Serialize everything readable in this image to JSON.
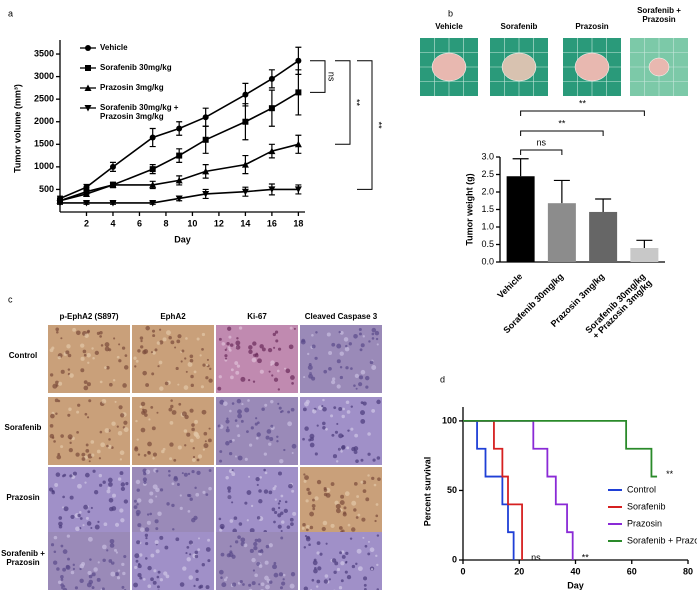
{
  "panel_labels": [
    "a",
    "b",
    "c",
    "d"
  ],
  "photos": [
    "Vehicle",
    "Sorafenib",
    "Prazosin",
    "Sorafenib + Prazosin"
  ],
  "histology": {
    "columns": [
      "p-EphA2 (S897)",
      "EphA2",
      "Ki-67",
      "Cleaved Caspase 3"
    ],
    "rows": [
      "Control",
      "Sorafenib",
      "Prazosin",
      "Sorafenib + Prazosin"
    ]
  },
  "chart_data": [
    {
      "type": "line",
      "x": [
        0,
        2,
        4,
        7,
        9,
        11,
        14,
        16,
        18
      ],
      "xlabel": "Day",
      "ylabel": "Tumor volume (mm³)",
      "xlim": [
        0,
        18.5
      ],
      "xticks": [
        2,
        4,
        6,
        8,
        10,
        12,
        14,
        16,
        18
      ],
      "ylim": [
        0,
        3700
      ],
      "yticks": [
        500,
        1000,
        1500,
        2000,
        2500,
        3000,
        3500
      ],
      "legend": "upper-left",
      "annotations": [
        "ns",
        "**",
        "**"
      ],
      "series": [
        {
          "name": "Vehicle",
          "color": "#000000",
          "marker": "circle",
          "values": [
            300,
            550,
            1000,
            1650,
            1850,
            2100,
            2600,
            2950,
            3350
          ],
          "errors": [
            50,
            60,
            100,
            200,
            150,
            200,
            250,
            200,
            300
          ]
        },
        {
          "name": "Sorafenib 30mg/kg",
          "color": "#000000",
          "marker": "square",
          "values": [
            250,
            450,
            600,
            950,
            1250,
            1600,
            2000,
            2300,
            2650
          ],
          "errors": [
            50,
            50,
            60,
            100,
            150,
            300,
            400,
            400,
            500
          ]
        },
        {
          "name": "Prazosin 3mg/kg",
          "color": "#000000",
          "marker": "triangle-up",
          "values": [
            250,
            400,
            600,
            600,
            700,
            900,
            1050,
            1350,
            1500
          ],
          "errors": [
            30,
            50,
            50,
            80,
            100,
            150,
            200,
            150,
            200
          ]
        },
        {
          "name": "Sorafenib 30mg/kg + Prazosin 3mg/kg",
          "color": "#000000",
          "marker": "triangle-down",
          "values": [
            200,
            200,
            200,
            200,
            300,
            400,
            450,
            500,
            500
          ],
          "errors": [
            30,
            30,
            30,
            30,
            50,
            100,
            100,
            120,
            100
          ]
        }
      ]
    },
    {
      "type": "bar",
      "categories": [
        "Vehicle",
        "Sorafenib 30mg/kg",
        "Prazosin 3mg/kg",
        "Sorafenib 30mg/kg + Prazosin 3mg/kg"
      ],
      "values": [
        2.45,
        1.68,
        1.43,
        0.4
      ],
      "errors": [
        0.5,
        0.65,
        0.37,
        0.22
      ],
      "colors": [
        "#000000",
        "#8c8c8c",
        "#666666",
        "#c8c8c8"
      ],
      "ylabel": "Tumor weight (g)",
      "ylim": [
        0,
        3.0
      ],
      "yticks": [
        {
          "value": 0,
          "label": "0.0"
        },
        0.5,
        {
          "value": 1,
          "label": "1.0"
        },
        1.5,
        {
          "value": 2,
          "label": "2.0"
        },
        2.5,
        {
          "value": 3,
          "label": "3.0"
        }
      ],
      "annotations": [
        "ns",
        "**",
        "**"
      ]
    },
    {
      "type": "step",
      "xlabel": "Day",
      "ylabel": "Percent survival",
      "xlim": [
        0,
        80
      ],
      "xticks": [
        0,
        20,
        40,
        60,
        80
      ],
      "ylim": [
        0,
        110
      ],
      "yticks": [
        0,
        50,
        100
      ],
      "legend": "lower-right",
      "annotations": [
        "ns",
        "**",
        "**"
      ],
      "series": [
        {
          "name": "Control",
          "color": "#1f3fd6",
          "x": [
            0,
            5,
            8,
            14,
            16,
            18
          ],
          "values": [
            100,
            80,
            60,
            40,
            20,
            0
          ]
        },
        {
          "name": "Sorafenib",
          "color": "#d62020",
          "x": [
            0,
            11,
            14,
            16,
            21
          ],
          "values": [
            100,
            80,
            60,
            40,
            0
          ]
        },
        {
          "name": "Prazosin",
          "color": "#8a2ad6",
          "x": [
            0,
            25,
            30,
            33,
            37,
            39
          ],
          "values": [
            100,
            80,
            60,
            40,
            20,
            0
          ]
        },
        {
          "name": "Sorafenib + Prazosin",
          "color": "#2a8a2a",
          "x": [
            0,
            58,
            67,
            69
          ],
          "values": [
            100,
            80,
            60,
            60
          ]
        }
      ]
    }
  ]
}
